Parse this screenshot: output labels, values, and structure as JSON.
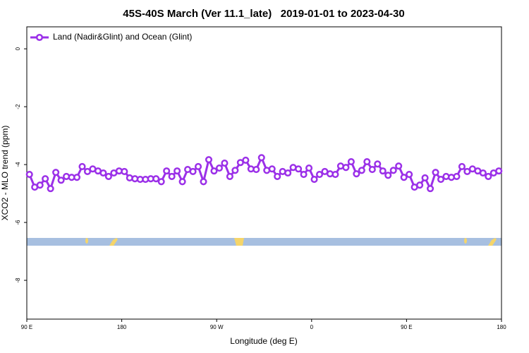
{
  "chart_data": {
    "type": "line",
    "title": "45S-40S March (Ver 11.1_late)   2019-01-01 to 2023-04-30",
    "x_label": "Longitude (deg E)",
    "y_label": "XCO2 - MLO trend (ppm)",
    "xlim": [
      90,
      540
    ],
    "ylim": [
      0.76,
      -9.34
    ],
    "xticks": [
      {
        "value": 90,
        "label": "90 E"
      },
      {
        "value": 180,
        "label": "180"
      },
      {
        "value": 270,
        "label": "90 W"
      },
      {
        "value": 360,
        "label": "0"
      },
      {
        "value": 450,
        "label": "90 E"
      },
      {
        "value": 540,
        "label": "180"
      }
    ],
    "yticks": [
      0,
      -2,
      -4,
      -6,
      -8
    ],
    "legend_position": "upper left",
    "x": [
      92.5,
      97.5,
      102.5,
      107.5,
      112.5,
      117.5,
      122.5,
      127.5,
      132.5,
      137.5,
      142.5,
      147.5,
      152.5,
      157.5,
      162.5,
      167.5,
      172.5,
      177.5,
      182.5,
      187.5,
      192.5,
      197.5,
      202.5,
      207.5,
      212.5,
      217.5,
      222.5,
      227.5,
      232.5,
      237.5,
      242.5,
      247.5,
      252.5,
      257.5,
      262.5,
      267.5,
      272.5,
      277.5,
      282.5,
      287.5,
      292.5,
      297.5,
      302.5,
      307.5,
      312.5,
      317.5,
      322.5,
      327.5,
      332.5,
      337.5,
      342.5,
      347.5,
      352.5,
      357.5,
      362.5,
      367.5,
      372.5,
      377.5,
      382.5,
      387.5,
      392.5,
      397.5,
      402.5,
      407.5,
      412.5,
      417.5,
      422.5,
      427.5,
      432.5,
      437.5,
      442.5,
      447.5,
      452.5,
      457.5,
      462.5,
      467.5,
      472.5,
      477.5,
      482.5,
      487.5,
      492.5,
      497.5,
      502.5,
      507.5,
      512.5,
      517.5,
      522.5,
      527.5,
      532.5,
      537.5
    ],
    "series": [
      {
        "name": "Land (Nadir&Glint) and Ocean (Glint)",
        "color": "#9b30e8",
        "values": [
          -4.34,
          -4.78,
          -4.71,
          -4.49,
          -4.83,
          -4.27,
          -4.54,
          -4.41,
          -4.44,
          -4.44,
          -4.07,
          -4.24,
          -4.15,
          -4.22,
          -4.29,
          -4.41,
          -4.29,
          -4.22,
          -4.24,
          -4.46,
          -4.49,
          -4.51,
          -4.51,
          -4.49,
          -4.49,
          -4.59,
          -4.22,
          -4.41,
          -4.22,
          -4.59,
          -4.17,
          -4.24,
          -4.07,
          -4.59,
          -3.83,
          -4.22,
          -4.12,
          -3.95,
          -4.41,
          -4.2,
          -3.93,
          -3.85,
          -4.15,
          -4.17,
          -3.76,
          -4.2,
          -4.15,
          -4.41,
          -4.24,
          -4.29,
          -4.1,
          -4.15,
          -4.34,
          -4.12,
          -4.51,
          -4.34,
          -4.24,
          -4.32,
          -4.34,
          -4.05,
          -4.1,
          -3.9,
          -4.32,
          -4.2,
          -3.9,
          -4.17,
          -3.98,
          -4.22,
          -4.37,
          -4.2,
          -4.05,
          -4.44,
          -4.34,
          -4.78,
          -4.71,
          -4.46,
          -4.83,
          -4.27,
          -4.51,
          -4.41,
          -4.44,
          -4.41,
          -4.07,
          -4.24,
          -4.15,
          -4.22,
          -4.29,
          -4.41,
          -4.29,
          -4.22
        ]
      }
    ]
  }
}
